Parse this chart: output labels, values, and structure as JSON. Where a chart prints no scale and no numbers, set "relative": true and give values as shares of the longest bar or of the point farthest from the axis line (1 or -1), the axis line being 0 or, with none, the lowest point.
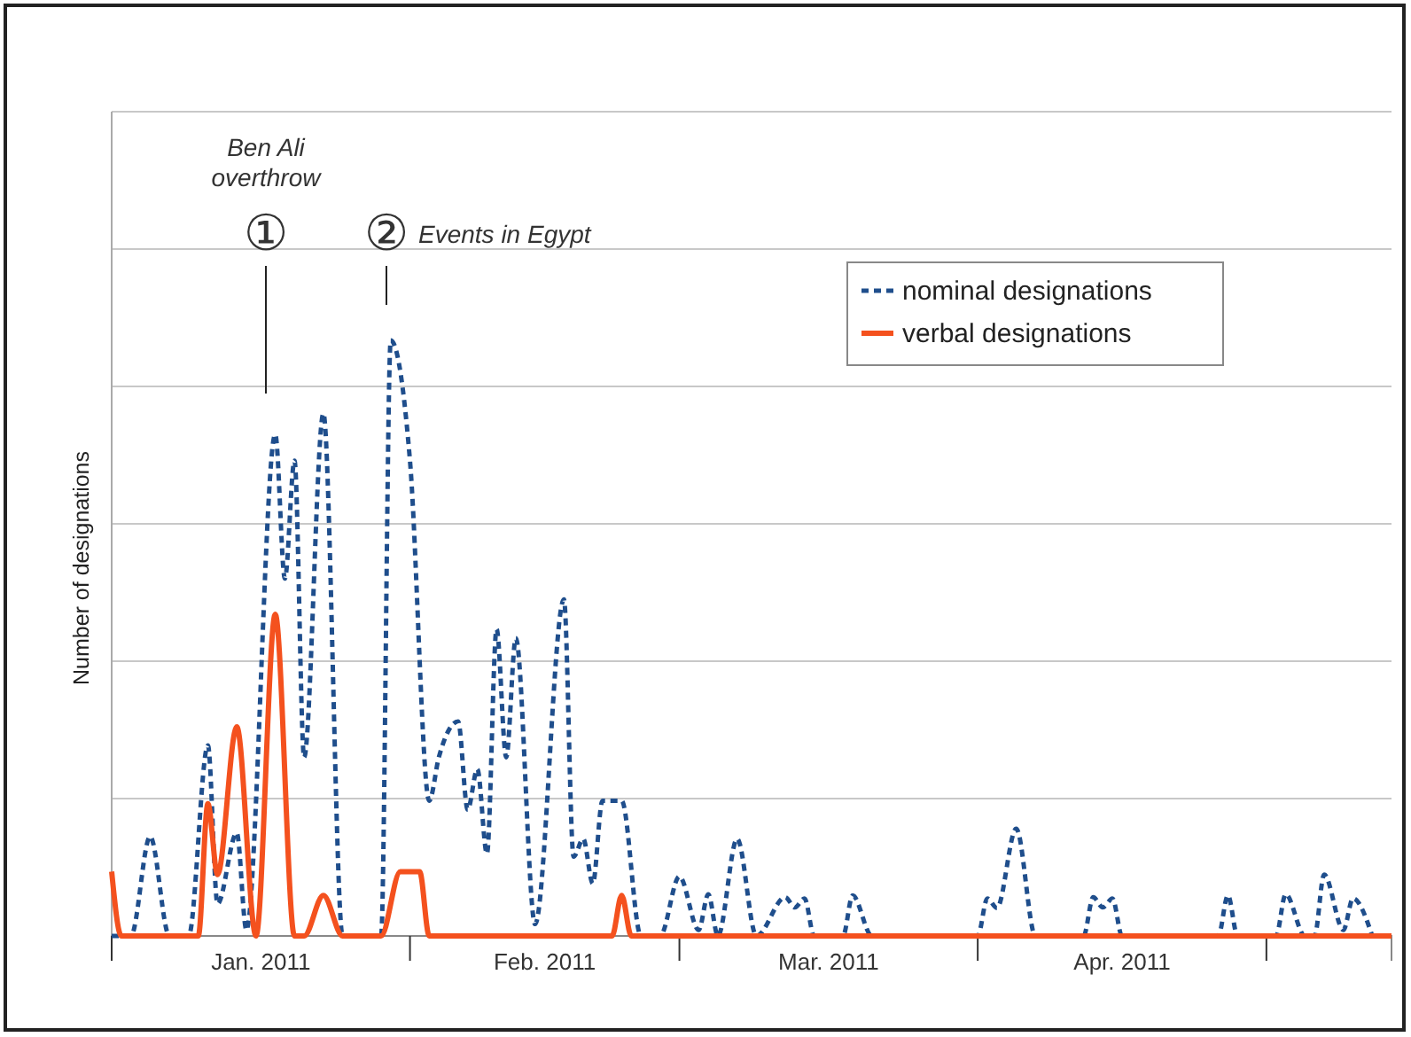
{
  "chart_data": {
    "type": "line",
    "ylabel": "Number of designations",
    "relative": true,
    "grid": "y",
    "legend": "top right",
    "xlim": [
      "2011-01-01",
      "2011-05-14"
    ],
    "xticks": [
      {
        "value": "2011-01-01",
        "label": null
      },
      {
        "value": "2011-01-16T12:00",
        "label": "Jan. 2011"
      },
      {
        "value": "2011-02-01",
        "label": null
      },
      {
        "value": "2011-02-15",
        "label": "Feb. 2011"
      },
      {
        "value": "2011-03-01",
        "label": null
      },
      {
        "value": "2011-03-16T12:00",
        "label": "Mar. 2011"
      },
      {
        "value": "2011-04-01",
        "label": null
      },
      {
        "value": "2011-04-16",
        "label": "Apr. 2011"
      },
      {
        "value": "2011-05-01",
        "label": null
      }
    ],
    "series": [
      {
        "name": "nominal designations",
        "color": "#1f4e8c",
        "line_style": "dashed",
        "x": [
          "2011-01-01",
          "2011-01-03",
          "2011-01-05",
          "2011-01-07",
          "2011-01-09",
          "2011-01-11",
          "2011-01-12",
          "2011-01-14",
          "2011-01-15",
          "2011-01-18",
          "2011-01-19",
          "2011-01-20",
          "2011-01-21",
          "2011-01-23",
          "2011-01-25",
          "2011-01-29",
          "2011-01-30",
          "2011-02-01",
          "2011-02-03",
          "2011-02-04",
          "2011-02-06",
          "2011-02-07",
          "2011-02-08",
          "2011-02-09",
          "2011-02-10",
          "2011-02-11",
          "2011-02-12",
          "2011-02-14",
          "2011-02-17",
          "2011-02-18",
          "2011-02-19",
          "2011-02-20",
          "2011-02-21",
          "2011-02-23",
          "2011-02-25",
          "2011-02-27",
          "2011-03-01",
          "2011-03-03",
          "2011-03-04",
          "2011-03-05",
          "2011-03-07",
          "2011-03-09",
          "2011-03-12",
          "2011-03-13",
          "2011-03-14",
          "2011-03-15",
          "2011-03-18",
          "2011-03-19",
          "2011-03-21",
          "2011-04-01",
          "2011-04-02",
          "2011-04-03",
          "2011-04-05",
          "2011-04-07",
          "2011-04-12",
          "2011-04-13",
          "2011-04-14",
          "2011-04-15",
          "2011-04-16",
          "2011-04-26",
          "2011-04-27",
          "2011-04-28",
          "2011-05-02",
          "2011-05-03",
          "2011-05-05",
          "2011-05-06",
          "2011-05-07",
          "2011-05-09",
          "2011-05-10",
          "2011-05-12"
        ],
        "values": [
          0,
          0,
          0.167,
          0,
          0,
          0.32,
          0.054,
          0.173,
          0.01,
          0.842,
          0.6,
          0.798,
          0.3,
          0.877,
          0,
          0,
          1,
          0.798,
          0.227,
          0.3,
          0.36,
          0.212,
          0.28,
          0.138,
          0.515,
          0.3,
          0.5,
          0.02,
          0.565,
          0.133,
          0.163,
          0.088,
          0.227,
          0.227,
          0,
          0,
          0.1,
          0.01,
          0.07,
          0,
          0.163,
          0,
          0.065,
          0.048,
          0.063,
          0,
          0,
          0.068,
          0,
          0,
          0.063,
          0.047,
          0.18,
          0,
          0,
          0.065,
          0.048,
          0.063,
          0,
          0,
          0.068,
          0,
          0,
          0.07,
          0,
          0,
          0.103,
          0.01,
          0.063,
          0
        ]
      },
      {
        "name": "verbal designations",
        "color": "#f4511e",
        "line_style": "solid",
        "x": [
          "2011-01-01",
          "2011-01-02",
          "2011-01-10",
          "2011-01-11",
          "2011-01-12",
          "2011-01-14",
          "2011-01-16",
          "2011-01-18",
          "2011-01-20",
          "2011-01-21",
          "2011-01-23",
          "2011-01-25",
          "2011-01-29",
          "2011-01-31",
          "2011-02-02",
          "2011-02-03",
          "2011-02-22",
          "2011-02-23",
          "2011-02-24",
          "2011-05-14"
        ],
        "values": [
          0.108,
          0,
          0,
          0.222,
          0.103,
          0.351,
          0,
          0.54,
          0,
          0,
          0.068,
          0,
          0,
          0.108,
          0.108,
          0,
          0,
          0.068,
          0,
          0
        ]
      }
    ],
    "annotations": [
      "①",
      "Ben Ali overthrow",
      "②",
      "Events in Egypt"
    ]
  }
}
